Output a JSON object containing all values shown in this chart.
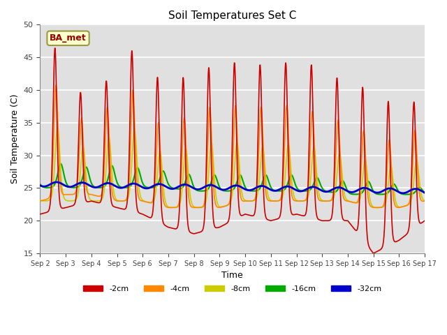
{
  "title": "Soil Temperatures Set C",
  "xlabel": "Time",
  "ylabel": "Soil Temperature (C)",
  "ylim": [
    15,
    50
  ],
  "annotation": "BA_met",
  "legend_labels": [
    "-2cm",
    "-4cm",
    "-8cm",
    "-16cm",
    "-32cm"
  ],
  "legend_colors": [
    "#cc0000",
    "#ff8800",
    "#cccc00",
    "#00aa00",
    "#0000cc"
  ],
  "bg_color": "#e0e0e0",
  "xtick_labels": [
    "Sep 2",
    "Sep 3",
    "Sep 4",
    "Sep 5",
    "Sep 6",
    "Sep 7",
    "Sep 8",
    "Sep 9",
    "Sep 10",
    "Sep 11",
    "Sep 12",
    "Sep 13",
    "Sep 14",
    "Sep 15",
    "Sep 16",
    "Sep 17"
  ],
  "ytick_values": [
    15,
    20,
    25,
    30,
    35,
    40,
    45,
    50
  ],
  "line_widths": [
    1.2,
    1.2,
    1.2,
    1.5,
    2.0
  ]
}
